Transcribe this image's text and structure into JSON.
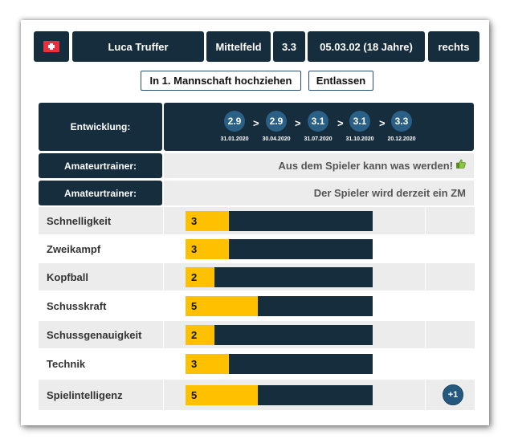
{
  "player": {
    "flag_icon": "swiss-flag-icon",
    "name": "Luca Truffer",
    "position": "Mittelfeld",
    "rating": "3.3",
    "birth": "05.03.02 (18 Jahre)",
    "foot": "rechts"
  },
  "actions": {
    "promote_label": "In 1. Mannschaft hochziehen",
    "dismiss_label": "Entlassen"
  },
  "development": {
    "label": "Entwicklung:",
    "points": [
      {
        "value": 2.9,
        "date": "31.01.2020"
      },
      {
        "value": 2.9,
        "date": "30.04.2020"
      },
      {
        "value": 3.1,
        "date": "31.07.2020"
      },
      {
        "value": 3.1,
        "date": "31.10.2020"
      },
      {
        "value": 3.3,
        "date": "20.12.2020"
      }
    ],
    "separator": ">"
  },
  "trainer_comments": [
    {
      "label": "Amateurtrainer:",
      "text": "Aus dem Spieler kann was werden!",
      "icon": "thumbs-up-icon"
    },
    {
      "label": "Amateurtrainer:",
      "text": "Der Spieler wird derzeit ein ZM"
    }
  ],
  "skills_max": 13,
  "skills": [
    {
      "name": "Schnelligkeit",
      "value": 3
    },
    {
      "name": "Zweikampf",
      "value": 3
    },
    {
      "name": "Kopfball",
      "value": 2
    },
    {
      "name": "Schusskraft",
      "value": 5
    },
    {
      "name": "Schussgenauigkeit",
      "value": 2
    },
    {
      "name": "Technik",
      "value": 3
    },
    {
      "name": "Spielintelligenz",
      "value": 5,
      "badge": "+1"
    }
  ],
  "colors": {
    "dark": "#162d3e",
    "bar_fill": "#ffc000",
    "bubble": "#2a6086",
    "row_alt": "#ececec"
  }
}
